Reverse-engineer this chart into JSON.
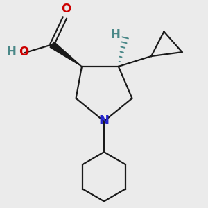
{
  "bg_color": "#ebebeb",
  "bond_color": "#1a1a1a",
  "N_color": "#2222cc",
  "O_color": "#cc0000",
  "H_color": "#4a8888",
  "line_width": 1.6,
  "figsize": [
    3.0,
    3.0
  ],
  "dpi": 100,
  "xlim": [
    -2.8,
    2.8
  ],
  "ylim": [
    -3.2,
    2.5
  ]
}
